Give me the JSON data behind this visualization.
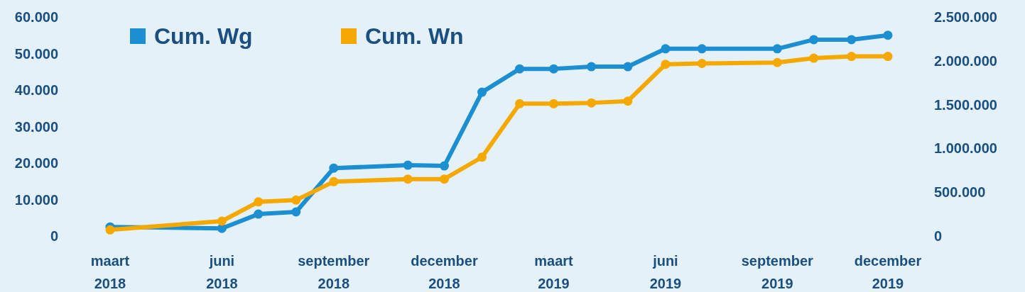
{
  "chart_data": {
    "type": "line",
    "x": [
      "2018-03",
      "2018-06",
      "2018-07",
      "2018-08",
      "2018-09",
      "2018-11",
      "2018-12",
      "2019-01",
      "2019-02",
      "2019-03",
      "2019-04",
      "2019-05",
      "2019-06",
      "2019-07",
      "2019-09",
      "2019-10",
      "2019-11",
      "2019-12"
    ],
    "series": [
      {
        "name": "Cum. Wg",
        "color": "#1b8fd2",
        "values": [
          2500,
          2100,
          6000,
          6600,
          18600,
          19400,
          19200,
          39400,
          45800,
          45800,
          46400,
          46400,
          51300,
          51300,
          51300,
          53800,
          53800,
          55000
        ]
      },
      {
        "name": "Cum. Wn",
        "color": "#f5a800",
        "axis": "y2",
        "values": [
          70000,
          170000,
          390000,
          410000,
          620000,
          650000,
          650000,
          900000,
          1510000,
          1510000,
          1520000,
          1540000,
          1960000,
          1970000,
          1980000,
          2030000,
          2050000,
          2050000
        ]
      }
    ],
    "xlim": [
      "2018-03",
      "2019-12"
    ],
    "xticks": [
      {
        "value": "2018-03",
        "label": "maart 2018"
      },
      {
        "value": "2018-06",
        "label": "juni 2018"
      },
      {
        "value": "2018-09",
        "label": "september 2018"
      },
      {
        "value": "2018-12",
        "label": "december 2018"
      },
      {
        "value": "2019-03",
        "label": "maart 2019"
      },
      {
        "value": "2019-06",
        "label": "juni 2019"
      },
      {
        "value": "2019-09",
        "label": "september 2019"
      },
      {
        "value": "2019-12",
        "label": "december 2019"
      }
    ],
    "ylim": [
      0,
      60000
    ],
    "yticks": [
      {
        "value": 0,
        "label": "0"
      },
      {
        "value": 10000,
        "label": "10.000"
      },
      {
        "value": 20000,
        "label": "20.000"
      },
      {
        "value": 30000,
        "label": "30.000"
      },
      {
        "value": 40000,
        "label": "40.000"
      },
      {
        "value": 50000,
        "label": "50.000"
      },
      {
        "value": 60000,
        "label": "60.000"
      }
    ],
    "y2lim": [
      0,
      2500000
    ],
    "y2ticks": [
      {
        "value": 0,
        "label": "0"
      },
      {
        "value": 500000,
        "label": "500.000"
      },
      {
        "value": 1000000,
        "label": "1.000.000"
      },
      {
        "value": 1500000,
        "label": "1.500.000"
      },
      {
        "value": 2000000,
        "label": "2.000.000"
      },
      {
        "value": 2500000,
        "label": "2.500.000"
      }
    ],
    "legend": "top left",
    "marker": "circle",
    "line_style": "solid",
    "grid": false
  }
}
